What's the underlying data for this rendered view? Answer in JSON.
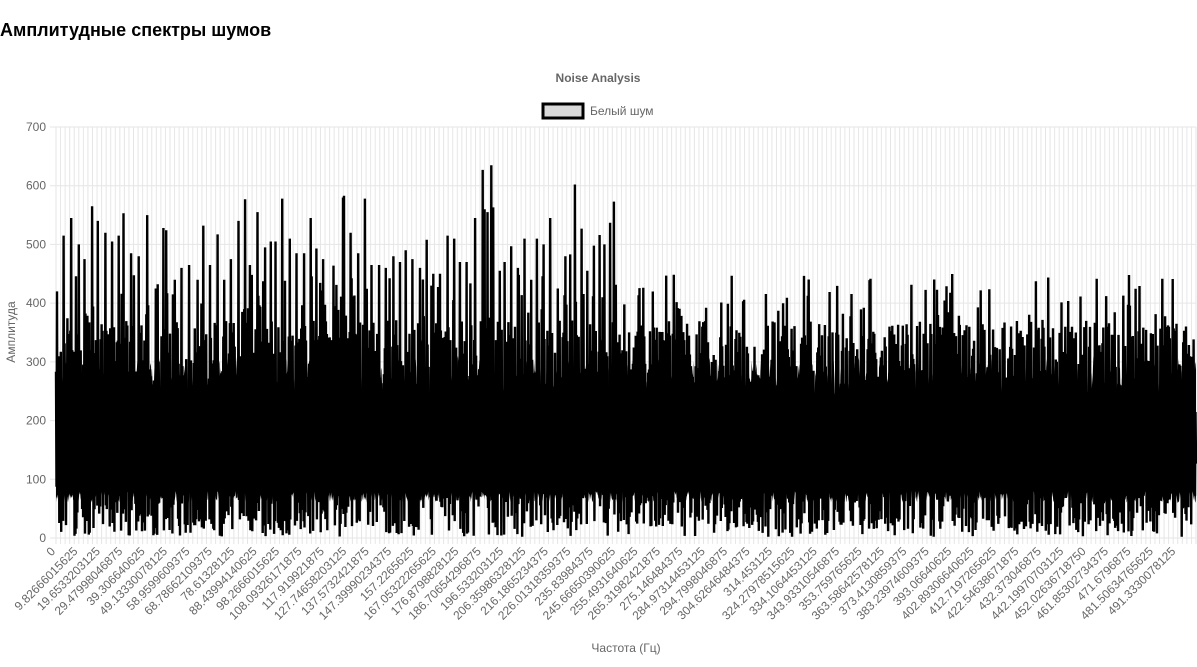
{
  "page": {
    "heading": "Амплитудные спектры шумов"
  },
  "colors": {
    "line": "#000000",
    "legend_fill": "#d9d9d9",
    "grid": "#e6e6e6",
    "text": "#666666"
  },
  "chart_data": {
    "type": "line",
    "title": "Noise Analysis",
    "xlabel": "Частота (Гц)",
    "ylabel": "Амплитуда",
    "ylim": [
      0,
      700
    ],
    "y_ticks": [
      0,
      100,
      200,
      300,
      400,
      500,
      600,
      700
    ],
    "x_range": [
      0,
      500
    ],
    "grid": true,
    "legend": {
      "position": "top",
      "entries": [
        "Белый шум"
      ]
    },
    "x_tick_labels": [
      "0",
      "9.82666015625",
      "19.6533203125",
      "29.47998046875",
      "39.306640625",
      "49.13330078125",
      "58.9599609375",
      "68.78662109375",
      "78.61328125",
      "88.43994140625",
      "98.2666015625",
      "108.09326171875",
      "117.919921875",
      "127.74658203125",
      "137.5732421875",
      "147.39990234375",
      "157.2265625",
      "167.05322265625",
      "176.8798828125",
      "186.70654296875",
      "196.533203125",
      "206.35986328125",
      "216.1865234375",
      "226.01318359375",
      "235.83984375",
      "245.66650390625",
      "255.4931640625",
      "265.31982421875",
      "275.146484375",
      "284.97314453125",
      "294.7998046875",
      "304.62646484375",
      "314.453125",
      "324.27978515625",
      "334.1064453125",
      "343.93310546875",
      "353.759765625",
      "363.58642578125",
      "373.4130859375",
      "383.23974609375",
      "393.06640625",
      "402.89306640625",
      "412.7197265625",
      "422.54638671875",
      "432.373046875",
      "442.19970703125",
      "452.02636718750",
      "461.85302734375",
      "471.6796875",
      "481.50634765625",
      "491.3330078125"
    ],
    "series": [
      {
        "name": "Белый шум",
        "peaks": [
          {
            "x": 0.5,
            "y": 420
          },
          {
            "x": 3.4,
            "y": 515
          },
          {
            "x": 6.5,
            "y": 545
          },
          {
            "x": 9.8,
            "y": 500
          },
          {
            "x": 12.4,
            "y": 475
          },
          {
            "x": 15.9,
            "y": 565
          },
          {
            "x": 18.3,
            "y": 540
          },
          {
            "x": 21.5,
            "y": 520
          },
          {
            "x": 24.6,
            "y": 505
          },
          {
            "x": 27.4,
            "y": 515
          },
          {
            "x": 29.6,
            "y": 553
          },
          {
            "x": 33.0,
            "y": 485
          },
          {
            "x": 36.2,
            "y": 480
          },
          {
            "x": 40.0,
            "y": 550
          },
          {
            "x": 43.6,
            "y": 425
          },
          {
            "x": 47.1,
            "y": 528
          },
          {
            "x": 48.3,
            "y": 524
          },
          {
            "x": 51.8,
            "y": 440
          },
          {
            "x": 55.1,
            "y": 460
          },
          {
            "x": 58.4,
            "y": 465
          },
          {
            "x": 61.8,
            "y": 440
          },
          {
            "x": 64.6,
            "y": 532
          },
          {
            "x": 67.6,
            "y": 465
          },
          {
            "x": 70.6,
            "y": 517
          },
          {
            "x": 73.7,
            "y": 440
          },
          {
            "x": 76.5,
            "y": 475
          },
          {
            "x": 79.8,
            "y": 540
          },
          {
            "x": 82.7,
            "y": 577
          },
          {
            "x": 85.1,
            "y": 465
          },
          {
            "x": 88.4,
            "y": 555
          },
          {
            "x": 91.5,
            "y": 495
          },
          {
            "x": 94.2,
            "y": 505
          },
          {
            "x": 96.1,
            "y": 505
          },
          {
            "x": 99.0,
            "y": 578
          },
          {
            "x": 102.4,
            "y": 510
          },
          {
            "x": 105.5,
            "y": 485
          },
          {
            "x": 108.5,
            "y": 485
          },
          {
            "x": 111.7,
            "y": 545
          },
          {
            "x": 114.0,
            "y": 493
          },
          {
            "x": 117.1,
            "y": 475
          },
          {
            "x": 121.5,
            "y": 464
          },
          {
            "x": 125.7,
            "y": 580
          },
          {
            "x": 126.4,
            "y": 583
          },
          {
            "x": 129.3,
            "y": 520
          },
          {
            "x": 132.5,
            "y": 485
          },
          {
            "x": 135.3,
            "y": 578
          },
          {
            "x": 138.3,
            "y": 465
          },
          {
            "x": 141.5,
            "y": 465
          },
          {
            "x": 144.7,
            "y": 460
          },
          {
            "x": 147.9,
            "y": 480
          },
          {
            "x": 150.6,
            "y": 470
          },
          {
            "x": 153.2,
            "y": 490
          },
          {
            "x": 156.2,
            "y": 475
          },
          {
            "x": 159.7,
            "y": 460
          },
          {
            "x": 162.5,
            "y": 508
          },
          {
            "x": 165.5,
            "y": 450
          },
          {
            "x": 168.4,
            "y": 450
          },
          {
            "x": 171.5,
            "y": 515
          },
          {
            "x": 174.5,
            "y": 510
          },
          {
            "x": 177.1,
            "y": 470
          },
          {
            "x": 180.1,
            "y": 470
          },
          {
            "x": 183.7,
            "y": 545
          },
          {
            "x": 186.9,
            "y": 627
          },
          {
            "x": 188.0,
            "y": 560
          },
          {
            "x": 189.3,
            "y": 555
          },
          {
            "x": 191.0,
            "y": 635
          },
          {
            "x": 191.8,
            "y": 563
          },
          {
            "x": 194.4,
            "y": 455
          },
          {
            "x": 196.6,
            "y": 470
          },
          {
            "x": 199.4,
            "y": 497
          },
          {
            "x": 202.3,
            "y": 460
          },
          {
            "x": 205.2,
            "y": 510
          },
          {
            "x": 208.2,
            "y": 440
          },
          {
            "x": 211.0,
            "y": 510
          },
          {
            "x": 213.7,
            "y": 500
          },
          {
            "x": 216.8,
            "y": 545
          },
          {
            "x": 220.0,
            "y": 425
          },
          {
            "x": 223.4,
            "y": 480
          },
          {
            "x": 225.6,
            "y": 483
          },
          {
            "x": 227.5,
            "y": 602
          },
          {
            "x": 230.5,
            "y": 527
          },
          {
            "x": 233.1,
            "y": 455
          },
          {
            "x": 235.8,
            "y": 498
          },
          {
            "x": 238.3,
            "y": 516
          },
          {
            "x": 240.5,
            "y": 500
          },
          {
            "x": 243.1,
            "y": 537
          },
          {
            "x": 244.4,
            "y": 573
          }
        ]
      }
    ]
  }
}
